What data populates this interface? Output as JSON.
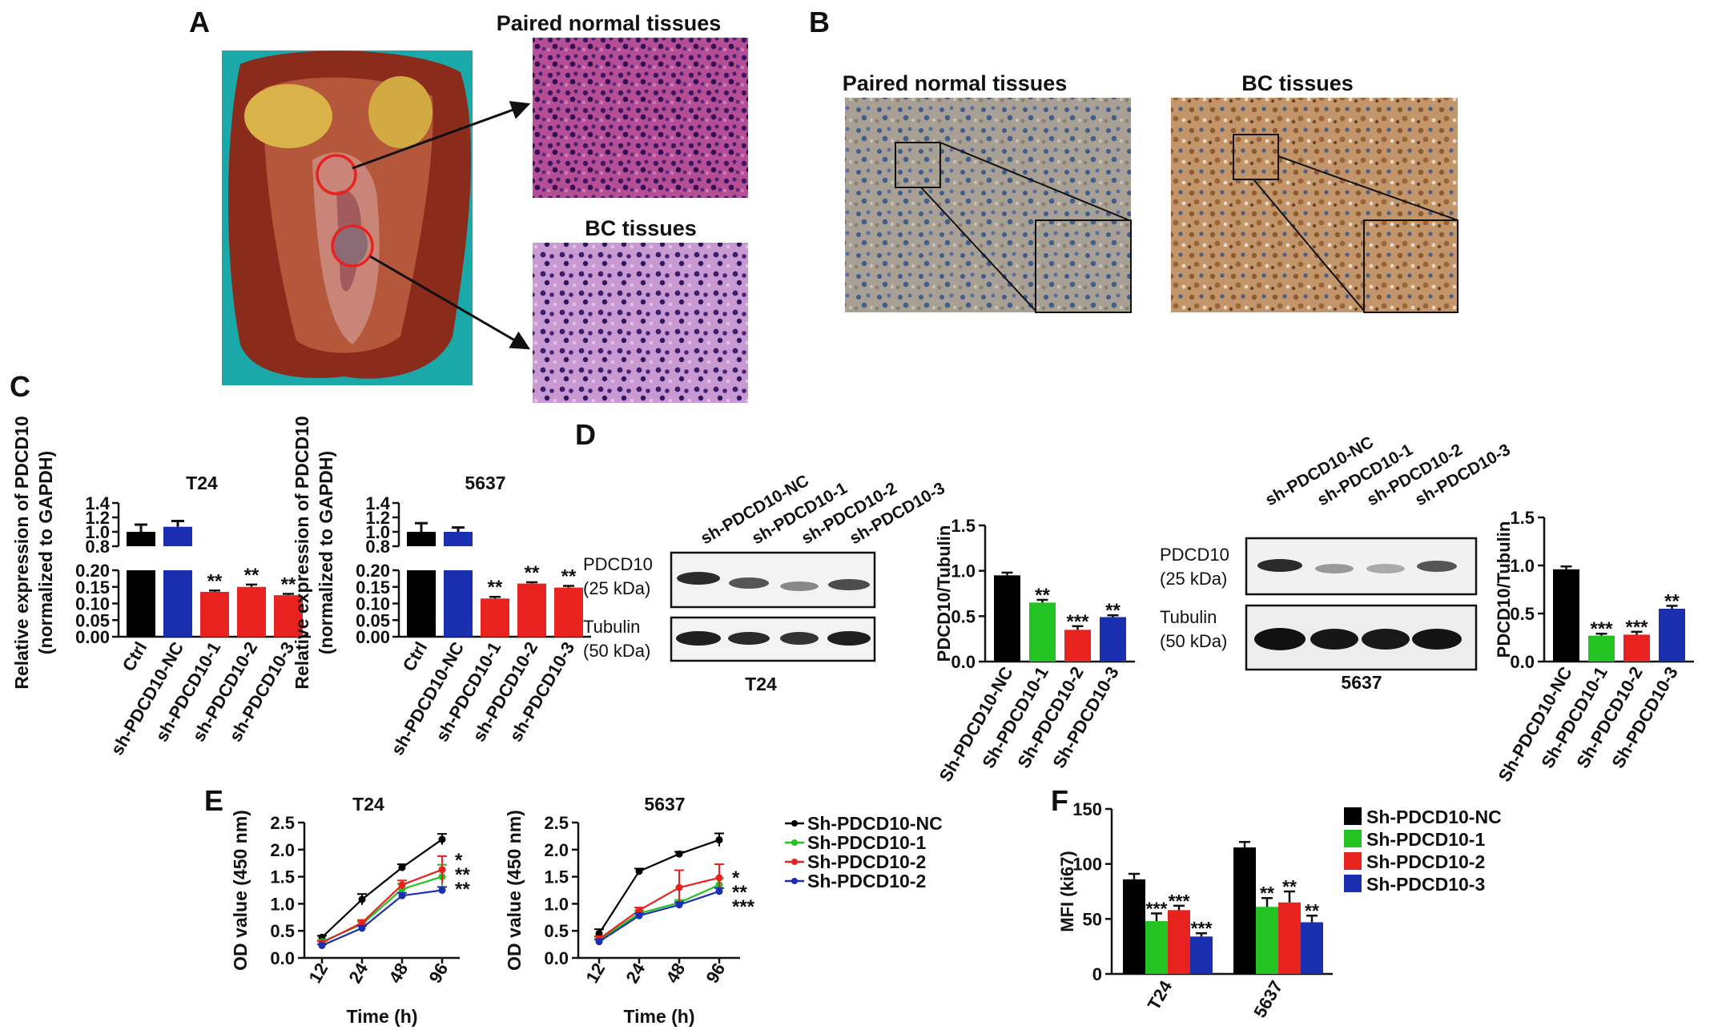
{
  "panels": {
    "A": {
      "letter": "A",
      "top_title": "Paired normal tissues",
      "bottom_title": "BC tissues"
    },
    "B": {
      "letter": "B",
      "left_title": "Paired normal tissues",
      "right_title": "BC tissues"
    },
    "C": {
      "letter": "C"
    },
    "D": {
      "letter": "D",
      "lane_labels": [
        "sh-PDCD10-NC",
        "sh-PDCD10-1",
        "sh-PDCD10-2",
        "sh-PDCD10-3"
      ],
      "band1": "PDCD10",
      "band1_kda": "(25 kDa)",
      "band2": "Tubulin",
      "band2_kda": "(50 kDa)",
      "blot1_caption": "T24",
      "blot2_caption": "5637"
    },
    "E": {
      "letter": "E"
    },
    "F": {
      "letter": "F"
    }
  },
  "colors": {
    "black": "#000000",
    "blue": "#1a2fb0",
    "red": "#e8231f",
    "green": "#22c322"
  },
  "chart_data": [
    {
      "id": "C-T24",
      "type": "bar",
      "title": "T24",
      "ylabel_line1": "Relative expression of PDCD10",
      "ylabel_line2": "(normalized to GAPDH)",
      "categories": [
        "Ctrl",
        "sh-PDCD10-NC",
        "sh-PDCD10-1",
        "sh-PDCD10-2",
        "sh-PDCD10-3"
      ],
      "values": [
        1.0,
        1.07,
        0.135,
        0.15,
        0.125
      ],
      "errors": [
        0.1,
        0.08,
        0.004,
        0.007,
        0.004
      ],
      "significance": [
        "",
        "",
        "**",
        "**",
        "**"
      ],
      "axis_upper": {
        "range": [
          0.8,
          1.4
        ],
        "ticks": [
          "0.8",
          "1.0",
          "1.2",
          "1.4"
        ]
      },
      "axis_lower": {
        "range": [
          0.0,
          0.2
        ],
        "ticks": [
          "0.00",
          "0.05",
          "0.10",
          "0.15",
          "0.20"
        ]
      },
      "broken_axis": true
    },
    {
      "id": "C-5637",
      "type": "bar",
      "title": "5637",
      "ylabel_line1": "Relative expression of PDCD10",
      "ylabel_line2": "(normalized to GAPDH)",
      "categories": [
        "Ctrl",
        "sh-PDCD10-NC",
        "sh-PDCD10-1",
        "sh-PDCD10-2",
        "sh-PDCD10-3"
      ],
      "values": [
        1.0,
        1.0,
        0.115,
        0.16,
        0.148
      ],
      "errors": [
        0.12,
        0.06,
        0.005,
        0.004,
        0.005
      ],
      "significance": [
        "",
        "",
        "**",
        "**",
        "**"
      ],
      "axis_upper": {
        "range": [
          0.8,
          1.4
        ],
        "ticks": [
          "0.8",
          "1.0",
          "1.2",
          "1.4"
        ]
      },
      "axis_lower": {
        "range": [
          0.0,
          0.2
        ],
        "ticks": [
          "0.00",
          "0.05",
          "0.10",
          "0.15",
          "0.20"
        ]
      },
      "broken_axis": true
    },
    {
      "id": "D-T24",
      "type": "bar",
      "ylabel": "PDCD10/Tubulin",
      "categories": [
        "Sh-PDCD10-NC",
        "Sh-PDCD10-1",
        "Sh-PDCD10-2",
        "Sh-PDCD10-3"
      ],
      "values": [
        0.95,
        0.65,
        0.35,
        0.49
      ],
      "errors": [
        0.03,
        0.03,
        0.04,
        0.02
      ],
      "significance": [
        "",
        "**",
        "***",
        "**"
      ],
      "ylim": [
        0,
        1.5
      ],
      "ticks": [
        "0.0",
        "0.5",
        "1.0",
        "1.5"
      ]
    },
    {
      "id": "D-5637",
      "type": "bar",
      "ylabel": "PDCD10/Tubulin",
      "categories": [
        "Sh-PDCD10-NC",
        "Sh-PDCD10-1",
        "Sh-PDCD10-2",
        "Sh-PDCD10-3"
      ],
      "values": [
        0.96,
        0.27,
        0.28,
        0.55
      ],
      "errors": [
        0.03,
        0.02,
        0.03,
        0.03
      ],
      "significance": [
        "",
        "***",
        "***",
        "**"
      ],
      "ylim": [
        0,
        1.5
      ],
      "ticks": [
        "0.0",
        "0.5",
        "1.0",
        "1.5"
      ]
    },
    {
      "id": "E-T24",
      "type": "line",
      "title": "T24",
      "xlabel": "Time (h)",
      "ylabel": "OD value (450 nm)",
      "x": [
        "12",
        "24",
        "48",
        "96"
      ],
      "ylim": [
        0,
        2.5
      ],
      "ticks": [
        "0.0",
        "0.5",
        "1.0",
        "1.5",
        "2.0",
        "2.5"
      ],
      "series": [
        {
          "name": "Sh-PDCD10-NC",
          "values": [
            0.38,
            1.08,
            1.67,
            2.19
          ],
          "errors": [
            0.03,
            0.1,
            0.06,
            0.1
          ]
        },
        {
          "name": "Sh-PDCD10-1",
          "values": [
            0.3,
            0.62,
            1.27,
            1.5
          ],
          "errors": [
            0.03,
            0.05,
            0.1,
            0.22
          ]
        },
        {
          "name": "Sh-PDCD10-2",
          "values": [
            0.28,
            0.65,
            1.35,
            1.63
          ],
          "errors": [
            0.03,
            0.05,
            0.08,
            0.25
          ]
        },
        {
          "name": "Sh-PDCD10-2",
          "values": [
            0.23,
            0.55,
            1.15,
            1.25
          ],
          "errors": [
            0.02,
            0.04,
            0.05,
            0.06
          ]
        }
      ],
      "significance": [
        "*",
        "**",
        "**"
      ]
    },
    {
      "id": "E-5637",
      "type": "line",
      "title": "5637",
      "xlabel": "Time (h)",
      "ylabel": "OD value (450 nm)",
      "x": [
        "12",
        "24",
        "48",
        "96"
      ],
      "ylim": [
        0,
        2.5
      ],
      "ticks": [
        "0.0",
        "0.5",
        "1.0",
        "1.5",
        "2.0",
        "2.5"
      ],
      "series": [
        {
          "name": "Sh-PDCD10-NC",
          "values": [
            0.45,
            1.6,
            1.92,
            2.18
          ],
          "errors": [
            0.08,
            0.05,
            0.04,
            0.12
          ]
        },
        {
          "name": "Sh-PDCD10-1",
          "values": [
            0.33,
            0.82,
            1.02,
            1.35
          ],
          "errors": [
            0.05,
            0.05,
            0.05,
            0.12
          ]
        },
        {
          "name": "Sh-PDCD10-2",
          "values": [
            0.35,
            0.88,
            1.3,
            1.48
          ],
          "errors": [
            0.05,
            0.05,
            0.32,
            0.25
          ]
        },
        {
          "name": "Sh-PDCD10-2",
          "values": [
            0.3,
            0.78,
            0.98,
            1.23
          ],
          "errors": [
            0.04,
            0.04,
            0.05,
            0.06
          ]
        }
      ],
      "significance": [
        "*",
        "**",
        "***"
      ]
    },
    {
      "id": "F",
      "type": "bar",
      "ylabel": "MFI (ki67)",
      "categories": [
        "T24",
        "5637"
      ],
      "series": [
        {
          "name": "Sh-PDCD10-NC",
          "values": [
            86,
            115
          ],
          "errors": [
            5,
            5
          ],
          "sig": [
            "",
            ""
          ]
        },
        {
          "name": "Sh-PDCD10-1",
          "values": [
            48,
            61
          ],
          "errors": [
            7,
            8
          ],
          "sig": [
            "***",
            "**"
          ]
        },
        {
          "name": "Sh-PDCD10-2",
          "values": [
            58,
            65
          ],
          "errors": [
            4,
            10
          ],
          "sig": [
            "***",
            "**"
          ]
        },
        {
          "name": "Sh-PDCD10-3",
          "values": [
            34,
            47
          ],
          "errors": [
            3,
            6
          ],
          "sig": [
            "***",
            "**"
          ]
        }
      ],
      "ylim": [
        0,
        150
      ],
      "ticks": [
        "0",
        "50",
        "100",
        "150"
      ]
    }
  ]
}
